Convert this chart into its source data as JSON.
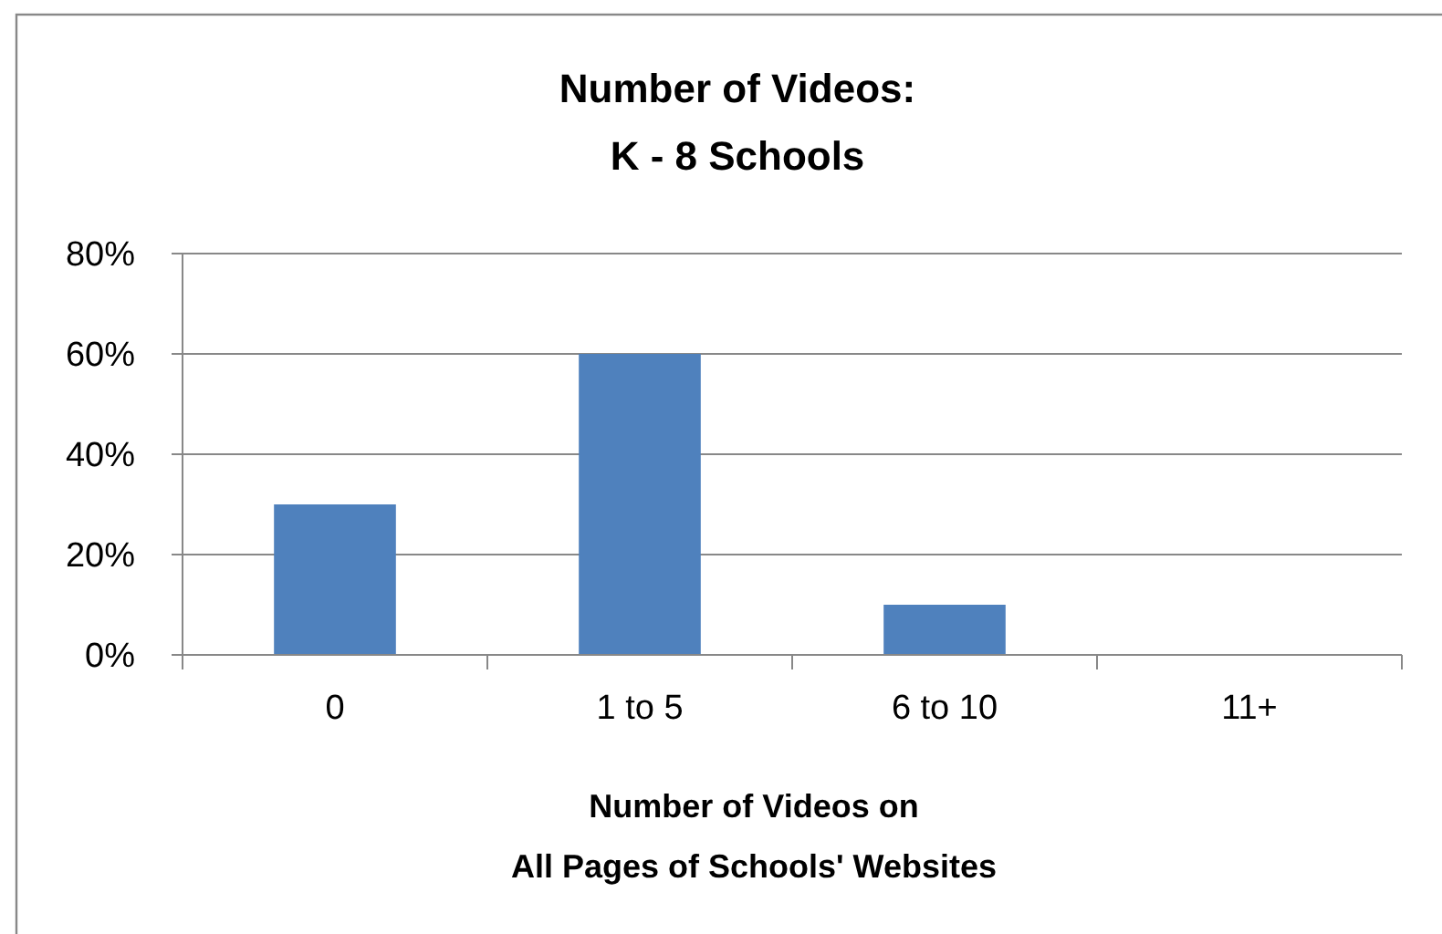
{
  "chart_data": {
    "type": "bar",
    "title": "Number of Videos:\nK - 8 Schools",
    "xlabel": "Number of Videos on\nAll Pages of Schools' Websites",
    "categories": [
      "0",
      "1 to 5",
      "6 to 10",
      "11+"
    ],
    "values": [
      30,
      60,
      10,
      0
    ],
    "color": "#4f81bd",
    "ylim": [
      0,
      80
    ],
    "yticks": [
      {
        "value": 0,
        "label": "0%"
      },
      {
        "value": 20,
        "label": "20%"
      },
      {
        "value": 40,
        "label": "40%"
      },
      {
        "value": 60,
        "label": "60%"
      },
      {
        "value": 80,
        "label": "80%"
      }
    ],
    "grid": "y"
  }
}
